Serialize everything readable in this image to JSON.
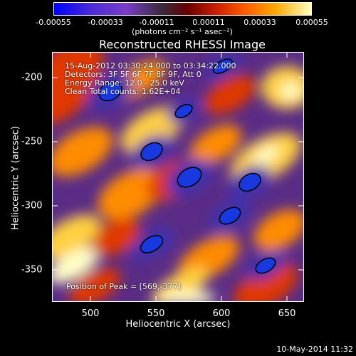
{
  "colorbar": {
    "ticks": [
      "-0.00055",
      "-0.00033",
      "-0.00011",
      "0.00011",
      "0.00033",
      "0.00055"
    ],
    "units": "(photons cm⁻² s⁻¹ asec⁻²)"
  },
  "chart_data": {
    "type": "heatmap",
    "title": "Reconstructed RHESSI Image",
    "xlabel": "Heliocentric X (arcsec)",
    "ylabel": "Heliocentric Y (arcsec)",
    "xlim": [
      468,
      660
    ],
    "ylim": [
      -375,
      -180
    ],
    "xticks": [
      "500",
      "550",
      "600",
      "650"
    ],
    "yticks": [
      "-200",
      "-250",
      "-300",
      "-350"
    ],
    "color_range": [
      -0.00055,
      0.00055
    ],
    "peak": [
      569,
      -377
    ]
  },
  "annotations": {
    "time": "15-Aug-2012 03:30:24.000 to 03:34:22.000",
    "detectors": "Detectors: 3F 5F 6F 7F 8F 9F, Att 0",
    "energy": "Energy Range: 12.0 - 25.0 keV",
    "method": "Clean     Total counts: 1.62E+04",
    "peak": "Position of Peak = [569,-377]"
  },
  "footer": "10-May-2014 11:32"
}
